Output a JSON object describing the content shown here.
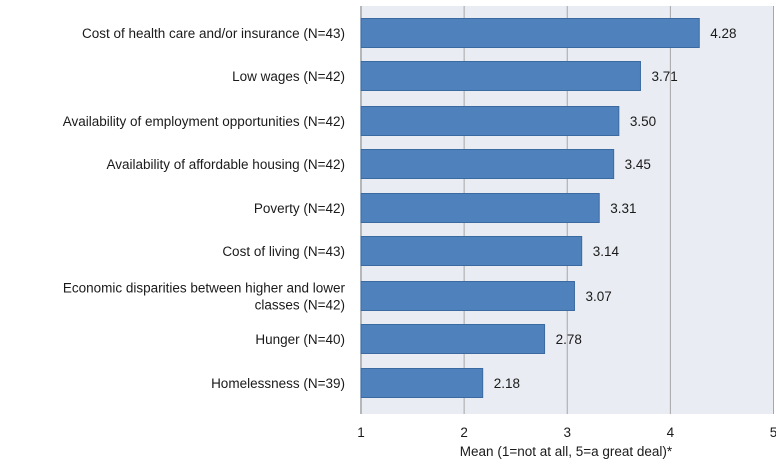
{
  "chart_data": {
    "type": "bar",
    "orientation": "horizontal",
    "categories": [
      [
        "Cost of health care and/or insurance (N=43)"
      ],
      [
        "Low wages (N=42)"
      ],
      [
        "Availability of employment opportunities (N=42)"
      ],
      [
        "Availability of affordable housing (N=42)"
      ],
      [
        "Poverty (N=42)"
      ],
      [
        "Cost of living (N=43)"
      ],
      [
        "Economic disparities between higher and lower",
        "classes (N=42)"
      ],
      [
        "Hunger (N=40)"
      ],
      [
        "Homelessness (N=39)"
      ]
    ],
    "values": [
      4.28,
      3.71,
      3.5,
      3.45,
      3.31,
      3.14,
      3.07,
      2.78,
      2.18
    ],
    "value_labels": [
      "4.28",
      "3.71",
      "3.50",
      "3.45",
      "3.31",
      "3.14",
      "3.07",
      "2.78",
      "2.18"
    ],
    "xlabel": "Mean (1=not at all, 5=a great deal)*",
    "xlim": [
      1,
      5
    ],
    "xticks": [
      "1",
      "2",
      "3",
      "4",
      "5"
    ],
    "grid": "vertical",
    "colors": {
      "bar_fill": "#4f81bd",
      "bar_stroke": "#3b6aa0",
      "plot_background": "#e9ecf2",
      "grid": "#a6a6a6"
    }
  }
}
